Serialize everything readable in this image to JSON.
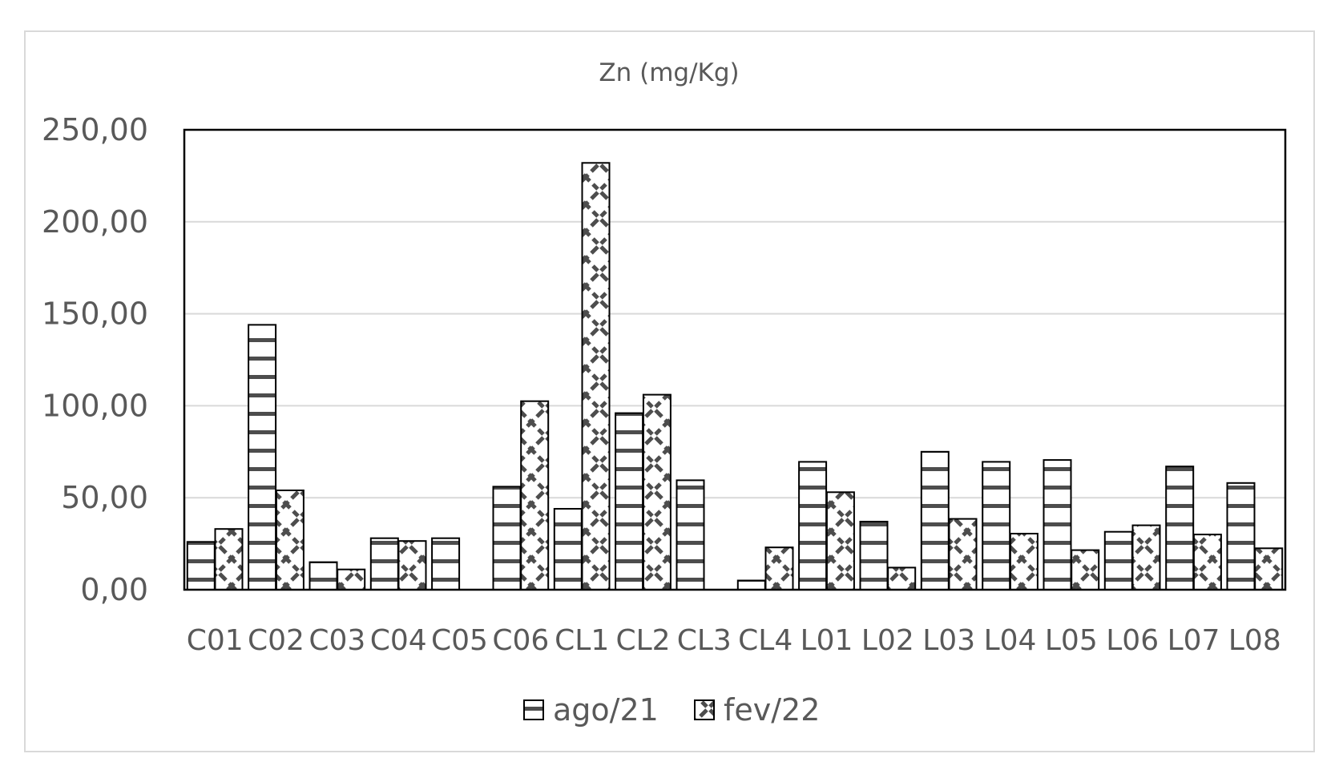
{
  "chart_data": {
    "type": "bar",
    "title": "Zn (mg/Kg)",
    "xlabel": "",
    "ylabel": "",
    "ylim": [
      0,
      250
    ],
    "yticks": [
      "0,00",
      "50,00",
      "100,00",
      "150,00",
      "200,00",
      "250,00"
    ],
    "grid": true,
    "legend_position": "bottom",
    "categories": [
      "C01",
      "C02",
      "C03",
      "C04",
      "C05",
      "C06",
      "CL1",
      "CL2",
      "CL3",
      "CL4",
      "L01",
      "L02",
      "L03",
      "L04",
      "L05",
      "L06",
      "L07",
      "L08"
    ],
    "series": [
      {
        "name": "ago/21",
        "pattern": "horizontal-stripes",
        "values": [
          26,
          144,
          15,
          28,
          28,
          56,
          44,
          96,
          59.5,
          5,
          69.5,
          37,
          75,
          69.5,
          70.5,
          31.5,
          67,
          58
        ]
      },
      {
        "name": "fev/22",
        "pattern": "zigzag-dashes",
        "values": [
          33,
          54,
          11,
          26.5,
          null,
          102.5,
          232,
          106,
          null,
          23,
          53,
          12,
          38.5,
          30.5,
          21.5,
          35,
          30,
          22.5
        ]
      }
    ],
    "colors": {
      "text": "#595959",
      "grid": "#d9d9d9",
      "bar_stroke": "#000000",
      "pattern": "#4d4d4d",
      "frame": "#d9d9d9"
    }
  }
}
